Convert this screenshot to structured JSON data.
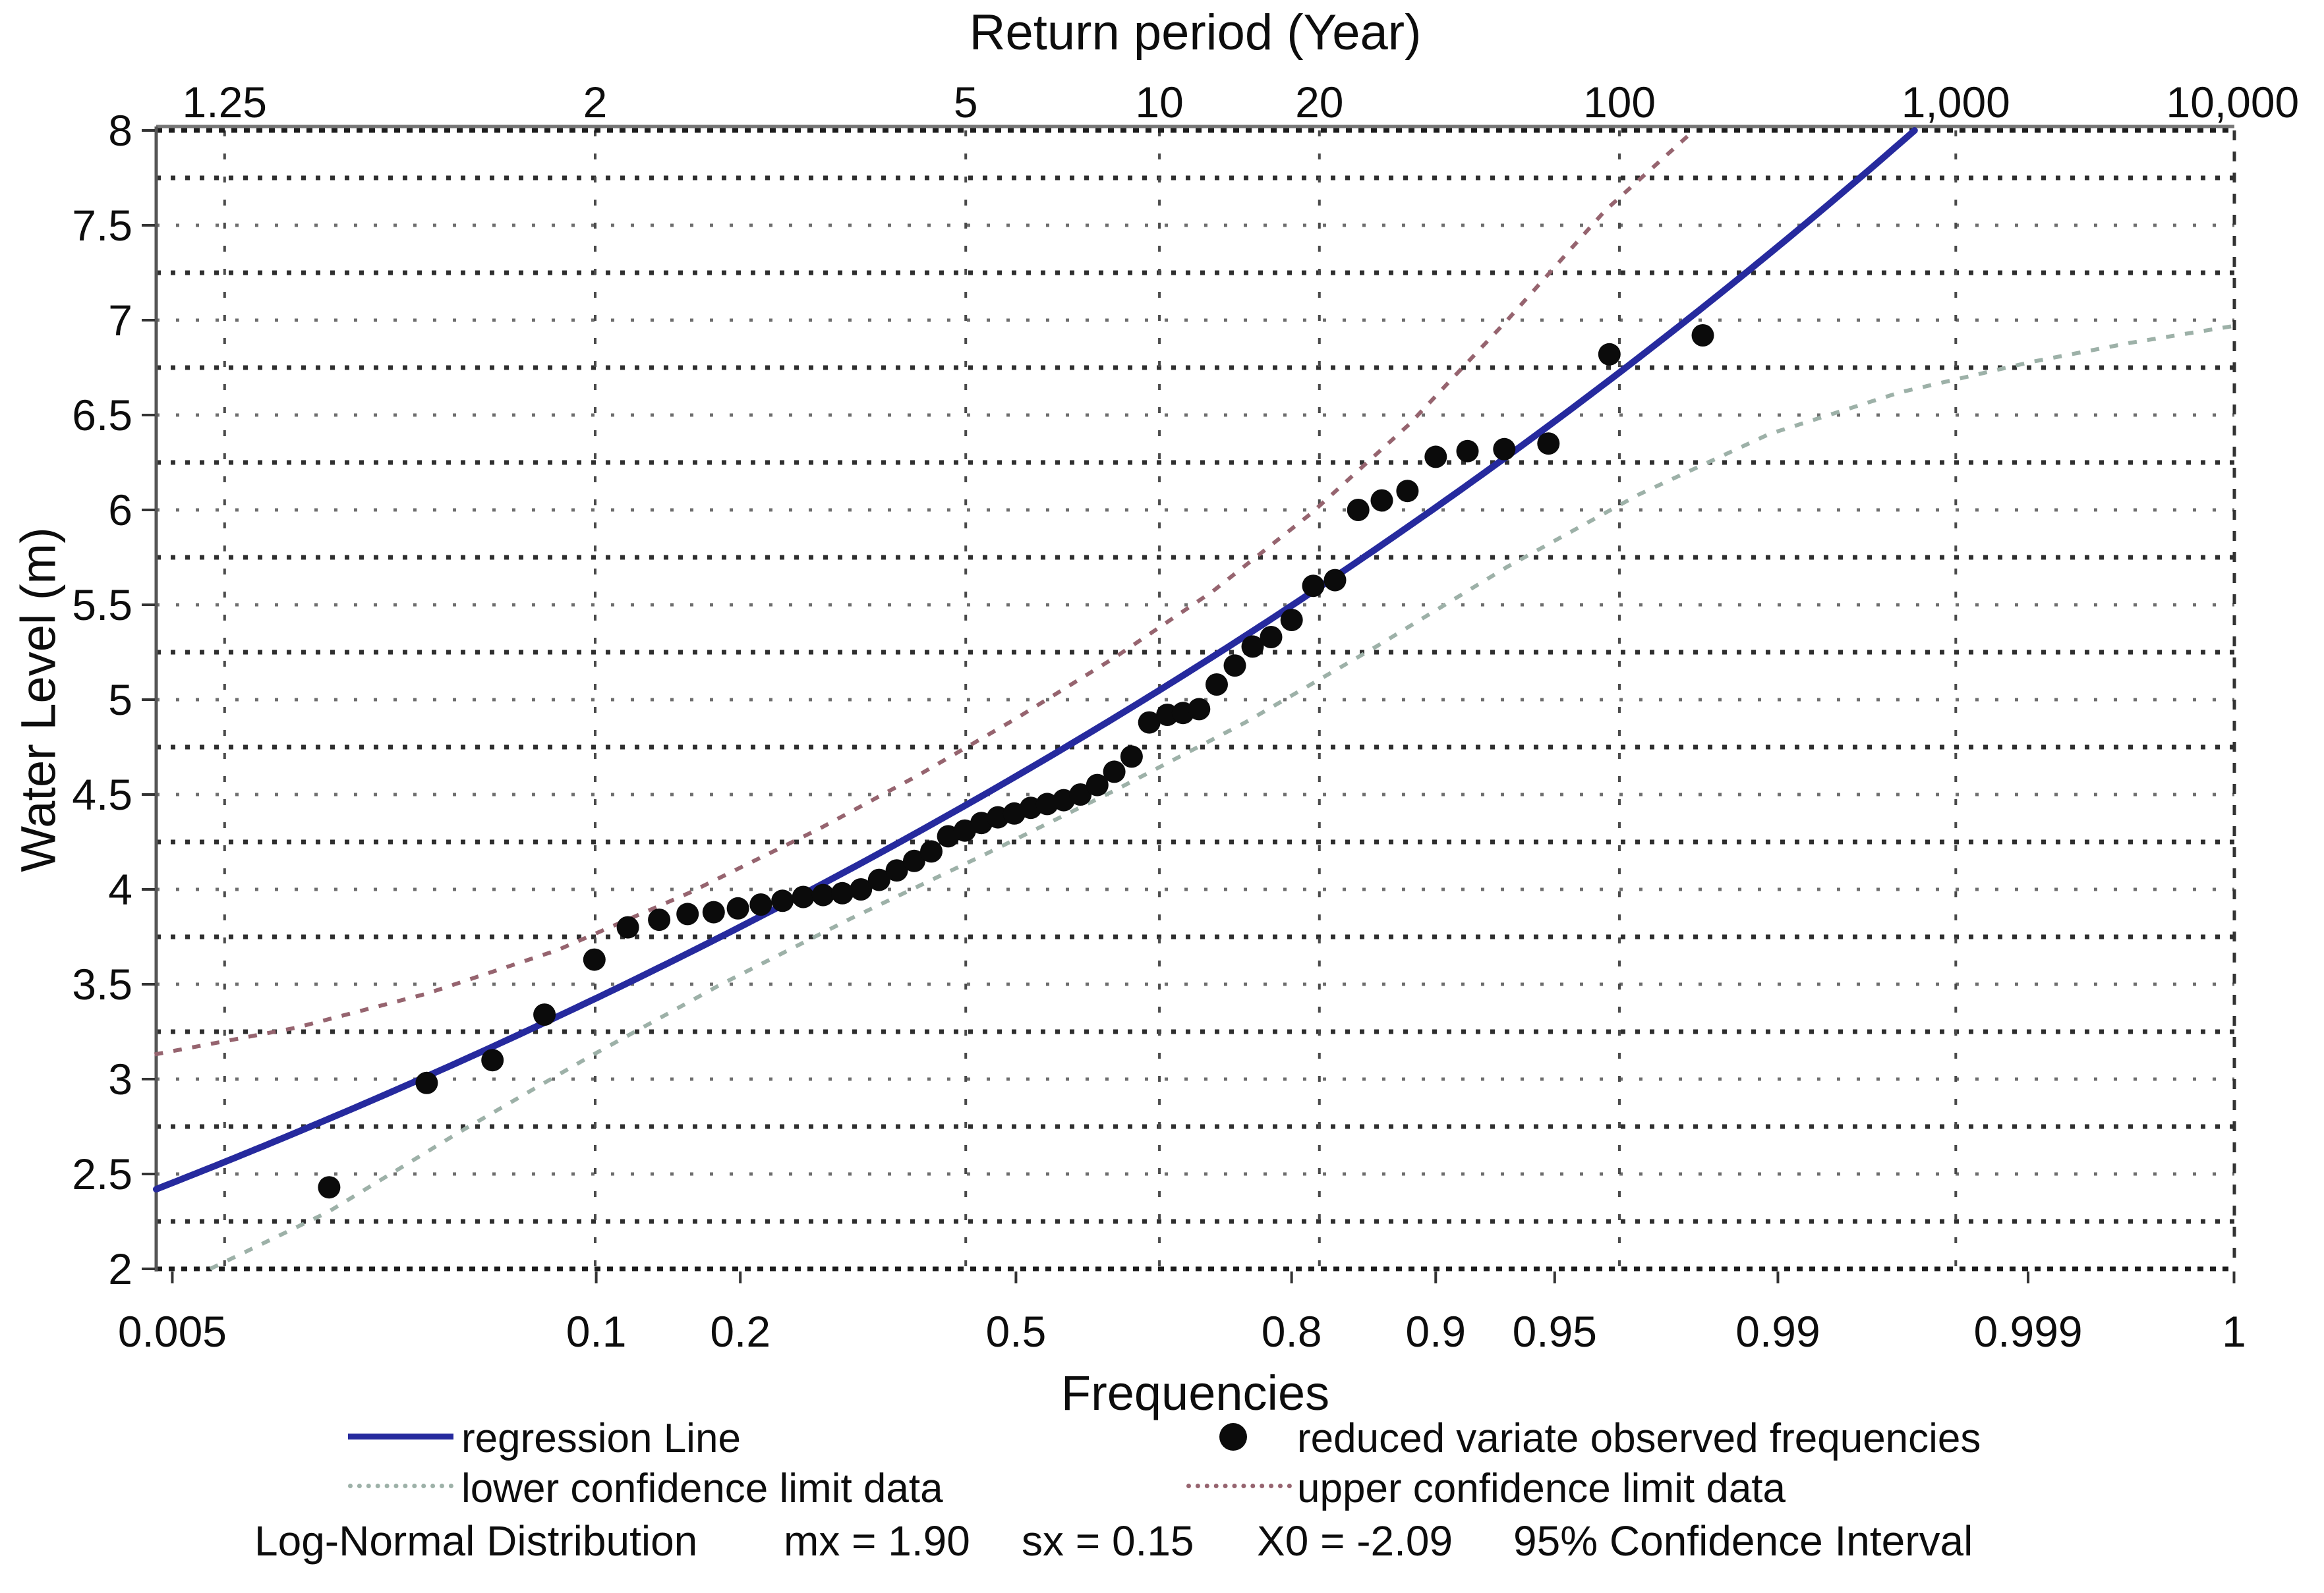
{
  "figure": {
    "background": "#ffffff",
    "top_axis": {
      "title": "Return period (Year)",
      "ticks": [
        {
          "label": "1.25",
          "T": 1.25
        },
        {
          "label": "2",
          "T": 2
        },
        {
          "label": "5",
          "T": 5
        },
        {
          "label": "10",
          "T": 10
        },
        {
          "label": "20",
          "T": 20
        },
        {
          "label": "100",
          "T": 100
        },
        {
          "label": "1,000",
          "T": 1000
        },
        {
          "label": "10,000",
          "T": 10000
        }
      ]
    },
    "bottom_axis": {
      "title": "Frequencies",
      "ticks": [
        {
          "label": "0.005",
          "F": 0.005
        },
        {
          "label": "0.1",
          "F": 0.1
        },
        {
          "label": "0.2",
          "F": 0.2
        },
        {
          "label": "0.5",
          "F": 0.5
        },
        {
          "label": "0.8",
          "F": 0.8
        },
        {
          "label": "0.9",
          "F": 0.9
        },
        {
          "label": "0.95",
          "F": 0.95
        },
        {
          "label": "0.99",
          "F": 0.99
        },
        {
          "label": "0.999",
          "F": 0.999
        },
        {
          "label": "1",
          "F": 0.9999
        }
      ]
    },
    "left_axis": {
      "title": "Water Level (m)",
      "min": 2,
      "max": 8,
      "label_step": 0.5,
      "grid_step": 0.25,
      "tick_labels": [
        "2",
        "2.5",
        "3",
        "3.5",
        "4",
        "4.5",
        "5",
        "5.5",
        "6",
        "6.5",
        "7",
        "7.5",
        "8"
      ]
    },
    "legend": {
      "items": [
        {
          "label": "regression Line",
          "swatch": "line",
          "color": "#262a9e"
        },
        {
          "label": "reduced variate observed frequencies",
          "swatch": "dot",
          "color": "#0b0b0b"
        },
        {
          "label": "lower confidence limit data",
          "swatch": "dotted",
          "color": "#9db1a8"
        },
        {
          "label": "upper confidence limit data",
          "swatch": "dotted",
          "color": "#96646f"
        }
      ]
    },
    "footer": {
      "items": [
        "Log-Normal Distribution",
        "mx = 1.90",
        "sx = 0.15",
        "X0 = -2.09",
        "95% Confidence Interval"
      ]
    }
  },
  "chart_data": {
    "type": "scatter",
    "title": "",
    "xlabel": "Frequencies",
    "ylabel": "Water Level (m)",
    "ylim": [
      2,
      8
    ],
    "x_scale": "normal-probability (reduced variate z)",
    "grid": "on",
    "legend_position": "below",
    "colors": {
      "regression": "#262a9e",
      "points": "#0b0b0b",
      "upper_cl": "#96646f",
      "lower_cl": "#9db1a8",
      "grid_dark": "#2f2f2f",
      "grid_light": "#6e6e6e"
    },
    "series": [
      {
        "name": "regression Line",
        "type": "line",
        "color": "#262a9e",
        "model": "WL = exp(mx + sx*z) + X0",
        "mx": 1.9,
        "sx": 0.15,
        "X0": -2.09
      },
      {
        "name": "reduced variate observed frequencies",
        "type": "scatter",
        "color": "#0b0b0b",
        "points_F_WL": [
          [
            0.018,
            2.43
          ],
          [
            0.036,
            2.98
          ],
          [
            0.055,
            3.1
          ],
          [
            0.075,
            3.34
          ],
          [
            0.099,
            3.63
          ],
          [
            0.118,
            3.8
          ],
          [
            0.138,
            3.84
          ],
          [
            0.158,
            3.87
          ],
          [
            0.178,
            3.88
          ],
          [
            0.198,
            3.9
          ],
          [
            0.218,
            3.92
          ],
          [
            0.238,
            3.94
          ],
          [
            0.258,
            3.96
          ],
          [
            0.278,
            3.97
          ],
          [
            0.298,
            3.98
          ],
          [
            0.318,
            4.0
          ],
          [
            0.338,
            4.05
          ],
          [
            0.358,
            4.1
          ],
          [
            0.378,
            4.15
          ],
          [
            0.398,
            4.2
          ],
          [
            0.418,
            4.28
          ],
          [
            0.438,
            4.31
          ],
          [
            0.458,
            4.35
          ],
          [
            0.478,
            4.38
          ],
          [
            0.498,
            4.4
          ],
          [
            0.518,
            4.43
          ],
          [
            0.538,
            4.45
          ],
          [
            0.558,
            4.47
          ],
          [
            0.578,
            4.5
          ],
          [
            0.598,
            4.55
          ],
          [
            0.618,
            4.62
          ],
          [
            0.638,
            4.7
          ],
          [
            0.658,
            4.88
          ],
          [
            0.678,
            4.92
          ],
          [
            0.695,
            4.93
          ],
          [
            0.712,
            4.95
          ],
          [
            0.73,
            5.08
          ],
          [
            0.748,
            5.18
          ],
          [
            0.765,
            5.28
          ],
          [
            0.782,
            5.33
          ],
          [
            0.8,
            5.42
          ],
          [
            0.818,
            5.6
          ],
          [
            0.835,
            5.63
          ],
          [
            0.852,
            6.0
          ],
          [
            0.868,
            6.05
          ],
          [
            0.884,
            6.1
          ],
          [
            0.9,
            6.28
          ],
          [
            0.916,
            6.31
          ],
          [
            0.932,
            6.32
          ],
          [
            0.948,
            6.35
          ],
          [
            0.965,
            6.82
          ],
          [
            0.982,
            6.92
          ]
        ]
      },
      {
        "name": "upper confidence limit data",
        "type": "dashed-line",
        "color": "#96646f",
        "points_z_WL": [
          [
            -2.63,
            3.13
          ],
          [
            -2.2,
            3.27
          ],
          [
            -1.8,
            3.45
          ],
          [
            -1.4,
            3.68
          ],
          [
            -1.0,
            3.98
          ],
          [
            -0.6,
            4.32
          ],
          [
            -0.3,
            4.6
          ],
          [
            0,
            4.9
          ],
          [
            0.3,
            5.22
          ],
          [
            0.6,
            5.57
          ],
          [
            0.9,
            5.98
          ],
          [
            1.2,
            6.45
          ],
          [
            1.5,
            7.0
          ],
          [
            1.8,
            7.58
          ],
          [
            2.07,
            8.0
          ]
        ]
      },
      {
        "name": "lower confidence limit data",
        "type": "dashed-line",
        "color": "#9db1a8",
        "points_z_WL": [
          [
            -2.46,
            2.0
          ],
          [
            -2.1,
            2.3
          ],
          [
            -1.7,
            2.72
          ],
          [
            -1.3,
            3.12
          ],
          [
            -0.9,
            3.5
          ],
          [
            -0.5,
            3.85
          ],
          [
            -0.1,
            4.18
          ],
          [
            0.3,
            4.52
          ],
          [
            0.7,
            4.88
          ],
          [
            1.1,
            5.28
          ],
          [
            1.5,
            5.7
          ],
          [
            1.9,
            6.08
          ],
          [
            2.3,
            6.4
          ],
          [
            2.7,
            6.62
          ],
          [
            3.1,
            6.78
          ],
          [
            3.4,
            6.88
          ],
          [
            3.72,
            6.97
          ]
        ]
      }
    ]
  }
}
